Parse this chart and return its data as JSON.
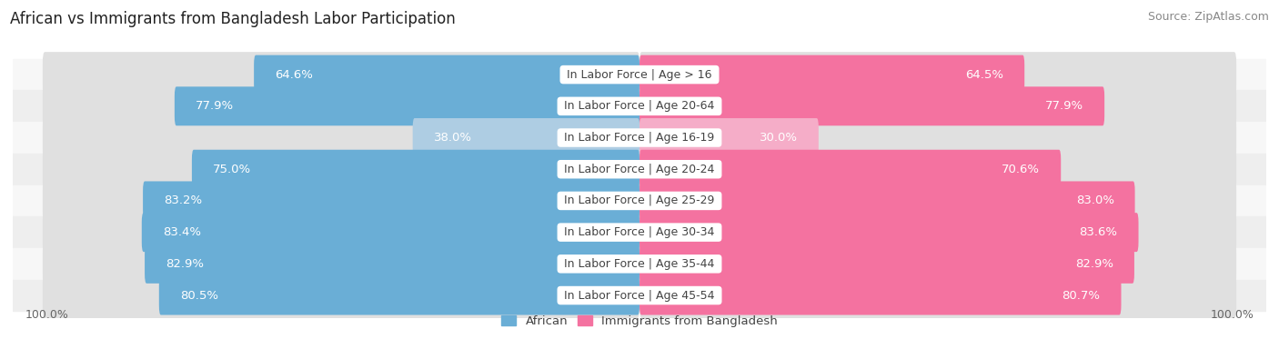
{
  "title": "African vs Immigrants from Bangladesh Labor Participation",
  "source": "Source: ZipAtlas.com",
  "categories": [
    "In Labor Force | Age > 16",
    "In Labor Force | Age 20-64",
    "In Labor Force | Age 16-19",
    "In Labor Force | Age 20-24",
    "In Labor Force | Age 25-29",
    "In Labor Force | Age 30-34",
    "In Labor Force | Age 35-44",
    "In Labor Force | Age 45-54"
  ],
  "african_values": [
    64.6,
    77.9,
    38.0,
    75.0,
    83.2,
    83.4,
    82.9,
    80.5
  ],
  "bangladesh_values": [
    64.5,
    77.9,
    30.0,
    70.6,
    83.0,
    83.6,
    82.9,
    80.7
  ],
  "african_color": "#6aaed6",
  "african_light_color": "#aecde3",
  "bangladesh_color": "#f472a0",
  "bangladesh_light_color": "#f5adc8",
  "track_color": "#e0e0e0",
  "row_bg_colors": [
    "#f7f7f7",
    "#eeeeee"
  ],
  "max_value": 100.0,
  "legend_african": "African",
  "legend_bangladesh": "Immigrants from Bangladesh",
  "label_fontsize": 9.5,
  "cat_fontsize": 9,
  "title_fontsize": 12,
  "source_fontsize": 9,
  "axis_label_fontsize": 9
}
